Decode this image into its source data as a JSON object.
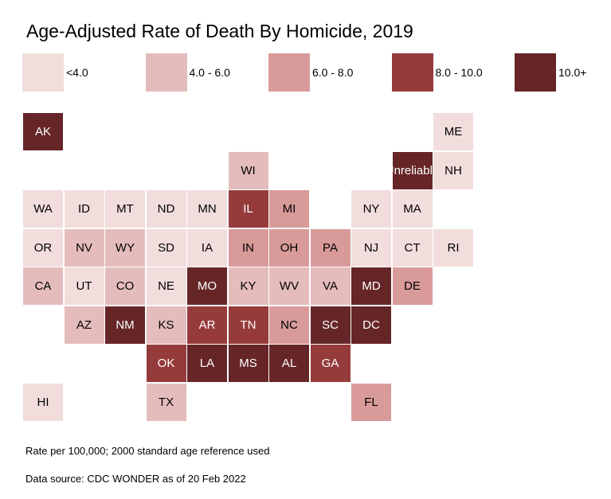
{
  "chart_data": {
    "type": "heatmap",
    "title": "Age-Adjusted Rate of Death By Homicide, 2019",
    "legend": [
      {
        "label": "<4.0",
        "color": "#f2dddd"
      },
      {
        "label": "4.0 - 6.0",
        "color": "#e5bcbc"
      },
      {
        "label": "6.0 - 8.0",
        "color": "#d99a9a"
      },
      {
        "label": "8.0 - 10.0",
        "color": "#963b3b"
      },
      {
        "label": "10.0+",
        "color": "#662628"
      }
    ],
    "tiles": [
      {
        "label": "AK",
        "col": 0,
        "row": 0,
        "bin": 4
      },
      {
        "label": "ME",
        "col": 10,
        "row": 0,
        "bin": 0
      },
      {
        "label": "WI",
        "col": 5,
        "row": 1,
        "bin": 1
      },
      {
        "label": "Unreliable",
        "col": 9,
        "row": 1,
        "bin": 4
      },
      {
        "label": "NH",
        "col": 10,
        "row": 1,
        "bin": 0
      },
      {
        "label": "WA",
        "col": 0,
        "row": 2,
        "bin": 0
      },
      {
        "label": "ID",
        "col": 1,
        "row": 2,
        "bin": 0
      },
      {
        "label": "MT",
        "col": 2,
        "row": 2,
        "bin": 0
      },
      {
        "label": "ND",
        "col": 3,
        "row": 2,
        "bin": 0
      },
      {
        "label": "MN",
        "col": 4,
        "row": 2,
        "bin": 0
      },
      {
        "label": "IL",
        "col": 5,
        "row": 2,
        "bin": 3
      },
      {
        "label": "MI",
        "col": 6,
        "row": 2,
        "bin": 2
      },
      {
        "label": "NY",
        "col": 8,
        "row": 2,
        "bin": 0
      },
      {
        "label": "MA",
        "col": 9,
        "row": 2,
        "bin": 0
      },
      {
        "label": "OR",
        "col": 0,
        "row": 3,
        "bin": 0
      },
      {
        "label": "NV",
        "col": 1,
        "row": 3,
        "bin": 1
      },
      {
        "label": "WY",
        "col": 2,
        "row": 3,
        "bin": 1
      },
      {
        "label": "SD",
        "col": 3,
        "row": 3,
        "bin": 0
      },
      {
        "label": "IA",
        "col": 4,
        "row": 3,
        "bin": 0
      },
      {
        "label": "IN",
        "col": 5,
        "row": 3,
        "bin": 2
      },
      {
        "label": "OH",
        "col": 6,
        "row": 3,
        "bin": 2
      },
      {
        "label": "PA",
        "col": 7,
        "row": 3,
        "bin": 2
      },
      {
        "label": "NJ",
        "col": 8,
        "row": 3,
        "bin": 0
      },
      {
        "label": "CT",
        "col": 9,
        "row": 3,
        "bin": 0
      },
      {
        "label": "RI",
        "col": 10,
        "row": 3,
        "bin": 0
      },
      {
        "label": "CA",
        "col": 0,
        "row": 4,
        "bin": 1
      },
      {
        "label": "UT",
        "col": 1,
        "row": 4,
        "bin": 0
      },
      {
        "label": "CO",
        "col": 2,
        "row": 4,
        "bin": 1
      },
      {
        "label": "NE",
        "col": 3,
        "row": 4,
        "bin": 0
      },
      {
        "label": "MO",
        "col": 4,
        "row": 4,
        "bin": 4
      },
      {
        "label": "KY",
        "col": 5,
        "row": 4,
        "bin": 1
      },
      {
        "label": "WV",
        "col": 6,
        "row": 4,
        "bin": 1
      },
      {
        "label": "VA",
        "col": 7,
        "row": 4,
        "bin": 1
      },
      {
        "label": "MD",
        "col": 8,
        "row": 4,
        "bin": 4
      },
      {
        "label": "DE",
        "col": 9,
        "row": 4,
        "bin": 2
      },
      {
        "label": "AZ",
        "col": 1,
        "row": 5,
        "bin": 1
      },
      {
        "label": "NM",
        "col": 2,
        "row": 5,
        "bin": 4
      },
      {
        "label": "KS",
        "col": 3,
        "row": 5,
        "bin": 1
      },
      {
        "label": "AR",
        "col": 4,
        "row": 5,
        "bin": 3
      },
      {
        "label": "TN",
        "col": 5,
        "row": 5,
        "bin": 3
      },
      {
        "label": "NC",
        "col": 6,
        "row": 5,
        "bin": 2
      },
      {
        "label": "SC",
        "col": 7,
        "row": 5,
        "bin": 4
      },
      {
        "label": "DC",
        "col": 8,
        "row": 5,
        "bin": 4
      },
      {
        "label": "OK",
        "col": 3,
        "row": 6,
        "bin": 3
      },
      {
        "label": "LA",
        "col": 4,
        "row": 6,
        "bin": 4
      },
      {
        "label": "MS",
        "col": 5,
        "row": 6,
        "bin": 4
      },
      {
        "label": "AL",
        "col": 6,
        "row": 6,
        "bin": 4
      },
      {
        "label": "GA",
        "col": 7,
        "row": 6,
        "bin": 3
      },
      {
        "label": "HI",
        "col": 0,
        "row": 7,
        "bin": 0
      },
      {
        "label": "TX",
        "col": 3,
        "row": 7,
        "bin": 1
      },
      {
        "label": "FL",
        "col": 8,
        "row": 7,
        "bin": 2
      }
    ],
    "notes": [
      "Rate per 100,000; 2000 standard age reference used",
      "Data source: CDC WONDER as of 20 Feb 2022"
    ]
  }
}
